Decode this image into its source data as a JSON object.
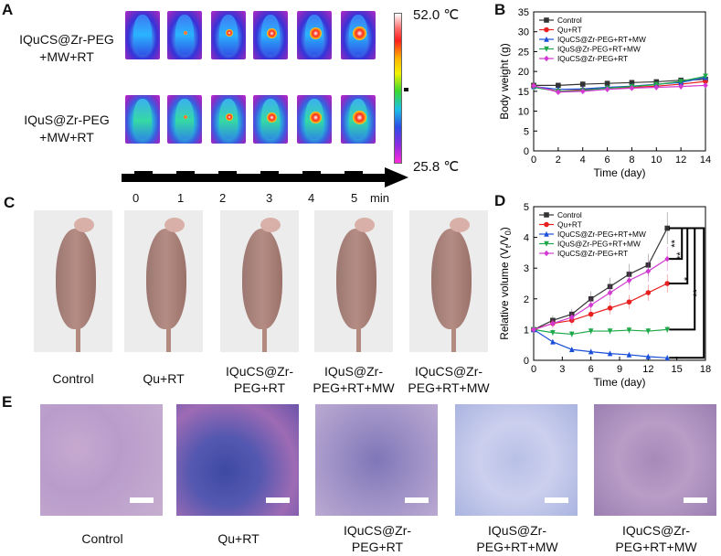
{
  "panel_letters": {
    "a": "A",
    "b": "B",
    "c": "C",
    "d": "D",
    "e": "E"
  },
  "panelA": {
    "row1_label_line1": "IQuCS@Zr-PEG",
    "row1_label_line2": "+MW+RT",
    "row2_label_line1": "IQuS@Zr-PEG",
    "row2_label_line2": "+MW+RT",
    "time_ticks": [
      "0",
      "1",
      "2",
      "3",
      "4",
      "5"
    ],
    "time_unit": "min",
    "scale_max": "52.0 ℃",
    "scale_min": "25.8 ℃"
  },
  "panelC": {
    "captions": [
      {
        "l1": "Control",
        "l2": ""
      },
      {
        "l1": "Qu+RT",
        "l2": ""
      },
      {
        "l1": "IQuCS@Zr-",
        "l2": "PEG+RT"
      },
      {
        "l1": "IQuS@Zr-",
        "l2": "PEG+RT+MW"
      },
      {
        "l1": "IQuCS@Zr-",
        "l2": "PEG+RT+MW"
      }
    ]
  },
  "panelE": {
    "captions": [
      {
        "l1": "Control",
        "l2": ""
      },
      {
        "l1": "Qu+RT",
        "l2": ""
      },
      {
        "l1": "IQuCS@Zr-",
        "l2": "PEG+RT"
      },
      {
        "l1": "IQuS@Zr-",
        "l2": "PEG+RT+MW"
      },
      {
        "l1": "IQuCS@Zr-",
        "l2": "PEG+RT+MW"
      }
    ]
  },
  "colors": {
    "control": "#333333",
    "qu_rt": "#e82020",
    "iqucs_rt_mw": "#1a4fd8",
    "iqus_rt_mw": "#1ea84a",
    "iqucs_rt": "#d23ad2"
  },
  "chart_data": [
    {
      "type": "line",
      "panel": "B",
      "xlabel": "Time (day)",
      "ylabel": "Body weight (g)",
      "xlim": [
        0,
        14
      ],
      "ylim": [
        0,
        35
      ],
      "xticks": [
        "0",
        "2",
        "4",
        "6",
        "8",
        "10",
        "12",
        "14"
      ],
      "yticks": [
        "0",
        "5",
        "10",
        "15",
        "20",
        "25",
        "30",
        "35"
      ],
      "legend_position": "top-left",
      "x": [
        0,
        2,
        4,
        6,
        8,
        10,
        12,
        14
      ],
      "series": [
        {
          "name": "Control",
          "values": [
            16.5,
            16.5,
            16.8,
            17.0,
            17.2,
            17.4,
            17.8,
            18.0
          ]
        },
        {
          "name": "Qu+RT",
          "values": [
            16.3,
            15.0,
            15.4,
            15.8,
            16.0,
            16.3,
            16.8,
            17.5
          ]
        },
        {
          "name": "IQuCS@Zr-PEG+RT+MW",
          "values": [
            16.2,
            15.5,
            15.6,
            16.0,
            16.3,
            16.8,
            17.2,
            18.5
          ]
        },
        {
          "name": "IQuS@Zr-PEG+RT+MW",
          "values": [
            16.0,
            15.0,
            15.2,
            15.8,
            16.2,
            16.7,
            17.5,
            18.8
          ]
        },
        {
          "name": "IQuCS@Zr-PEG+RT",
          "values": [
            16.4,
            14.8,
            15.0,
            15.5,
            15.8,
            16.0,
            16.2,
            16.5
          ]
        }
      ]
    },
    {
      "type": "line",
      "panel": "D",
      "xlabel": "Time (day)",
      "ylabel_prefix": "Relative volume (V",
      "ylabel_sub1": "t",
      "ylabel_mid": "/V",
      "ylabel_sub2": "0",
      "ylabel_suffix": ")",
      "xlim": [
        0,
        18
      ],
      "ylim": [
        0,
        5
      ],
      "xticks": [
        "0",
        "3",
        "6",
        "9",
        "12",
        "15",
        "18"
      ],
      "yticks": [
        "0",
        "1",
        "2",
        "3",
        "4",
        "5"
      ],
      "legend_position": "top-left",
      "x": [
        0,
        2,
        4,
        6,
        8,
        10,
        12,
        14
      ],
      "series": [
        {
          "name": "Control",
          "values": [
            1.0,
            1.3,
            1.5,
            2.0,
            2.4,
            2.8,
            3.1,
            4.3
          ]
        },
        {
          "name": "Qu+RT",
          "values": [
            1.0,
            1.2,
            1.3,
            1.5,
            1.7,
            1.9,
            2.2,
            2.5
          ]
        },
        {
          "name": "IQuCS@Zr-PEG+RT+MW",
          "values": [
            1.0,
            0.6,
            0.35,
            0.28,
            0.22,
            0.18,
            0.12,
            0.08
          ]
        },
        {
          "name": "IQuS@Zr-PEG+RT+MW",
          "values": [
            1.0,
            0.9,
            0.85,
            0.95,
            0.95,
            0.98,
            0.95,
            1.0
          ]
        },
        {
          "name": "IQuCS@Zr-PEG+RT",
          "values": [
            1.0,
            1.2,
            1.4,
            1.8,
            2.2,
            2.6,
            2.9,
            3.3
          ]
        }
      ],
      "significance": [
        "**",
        "**",
        "*",
        "**"
      ]
    }
  ]
}
